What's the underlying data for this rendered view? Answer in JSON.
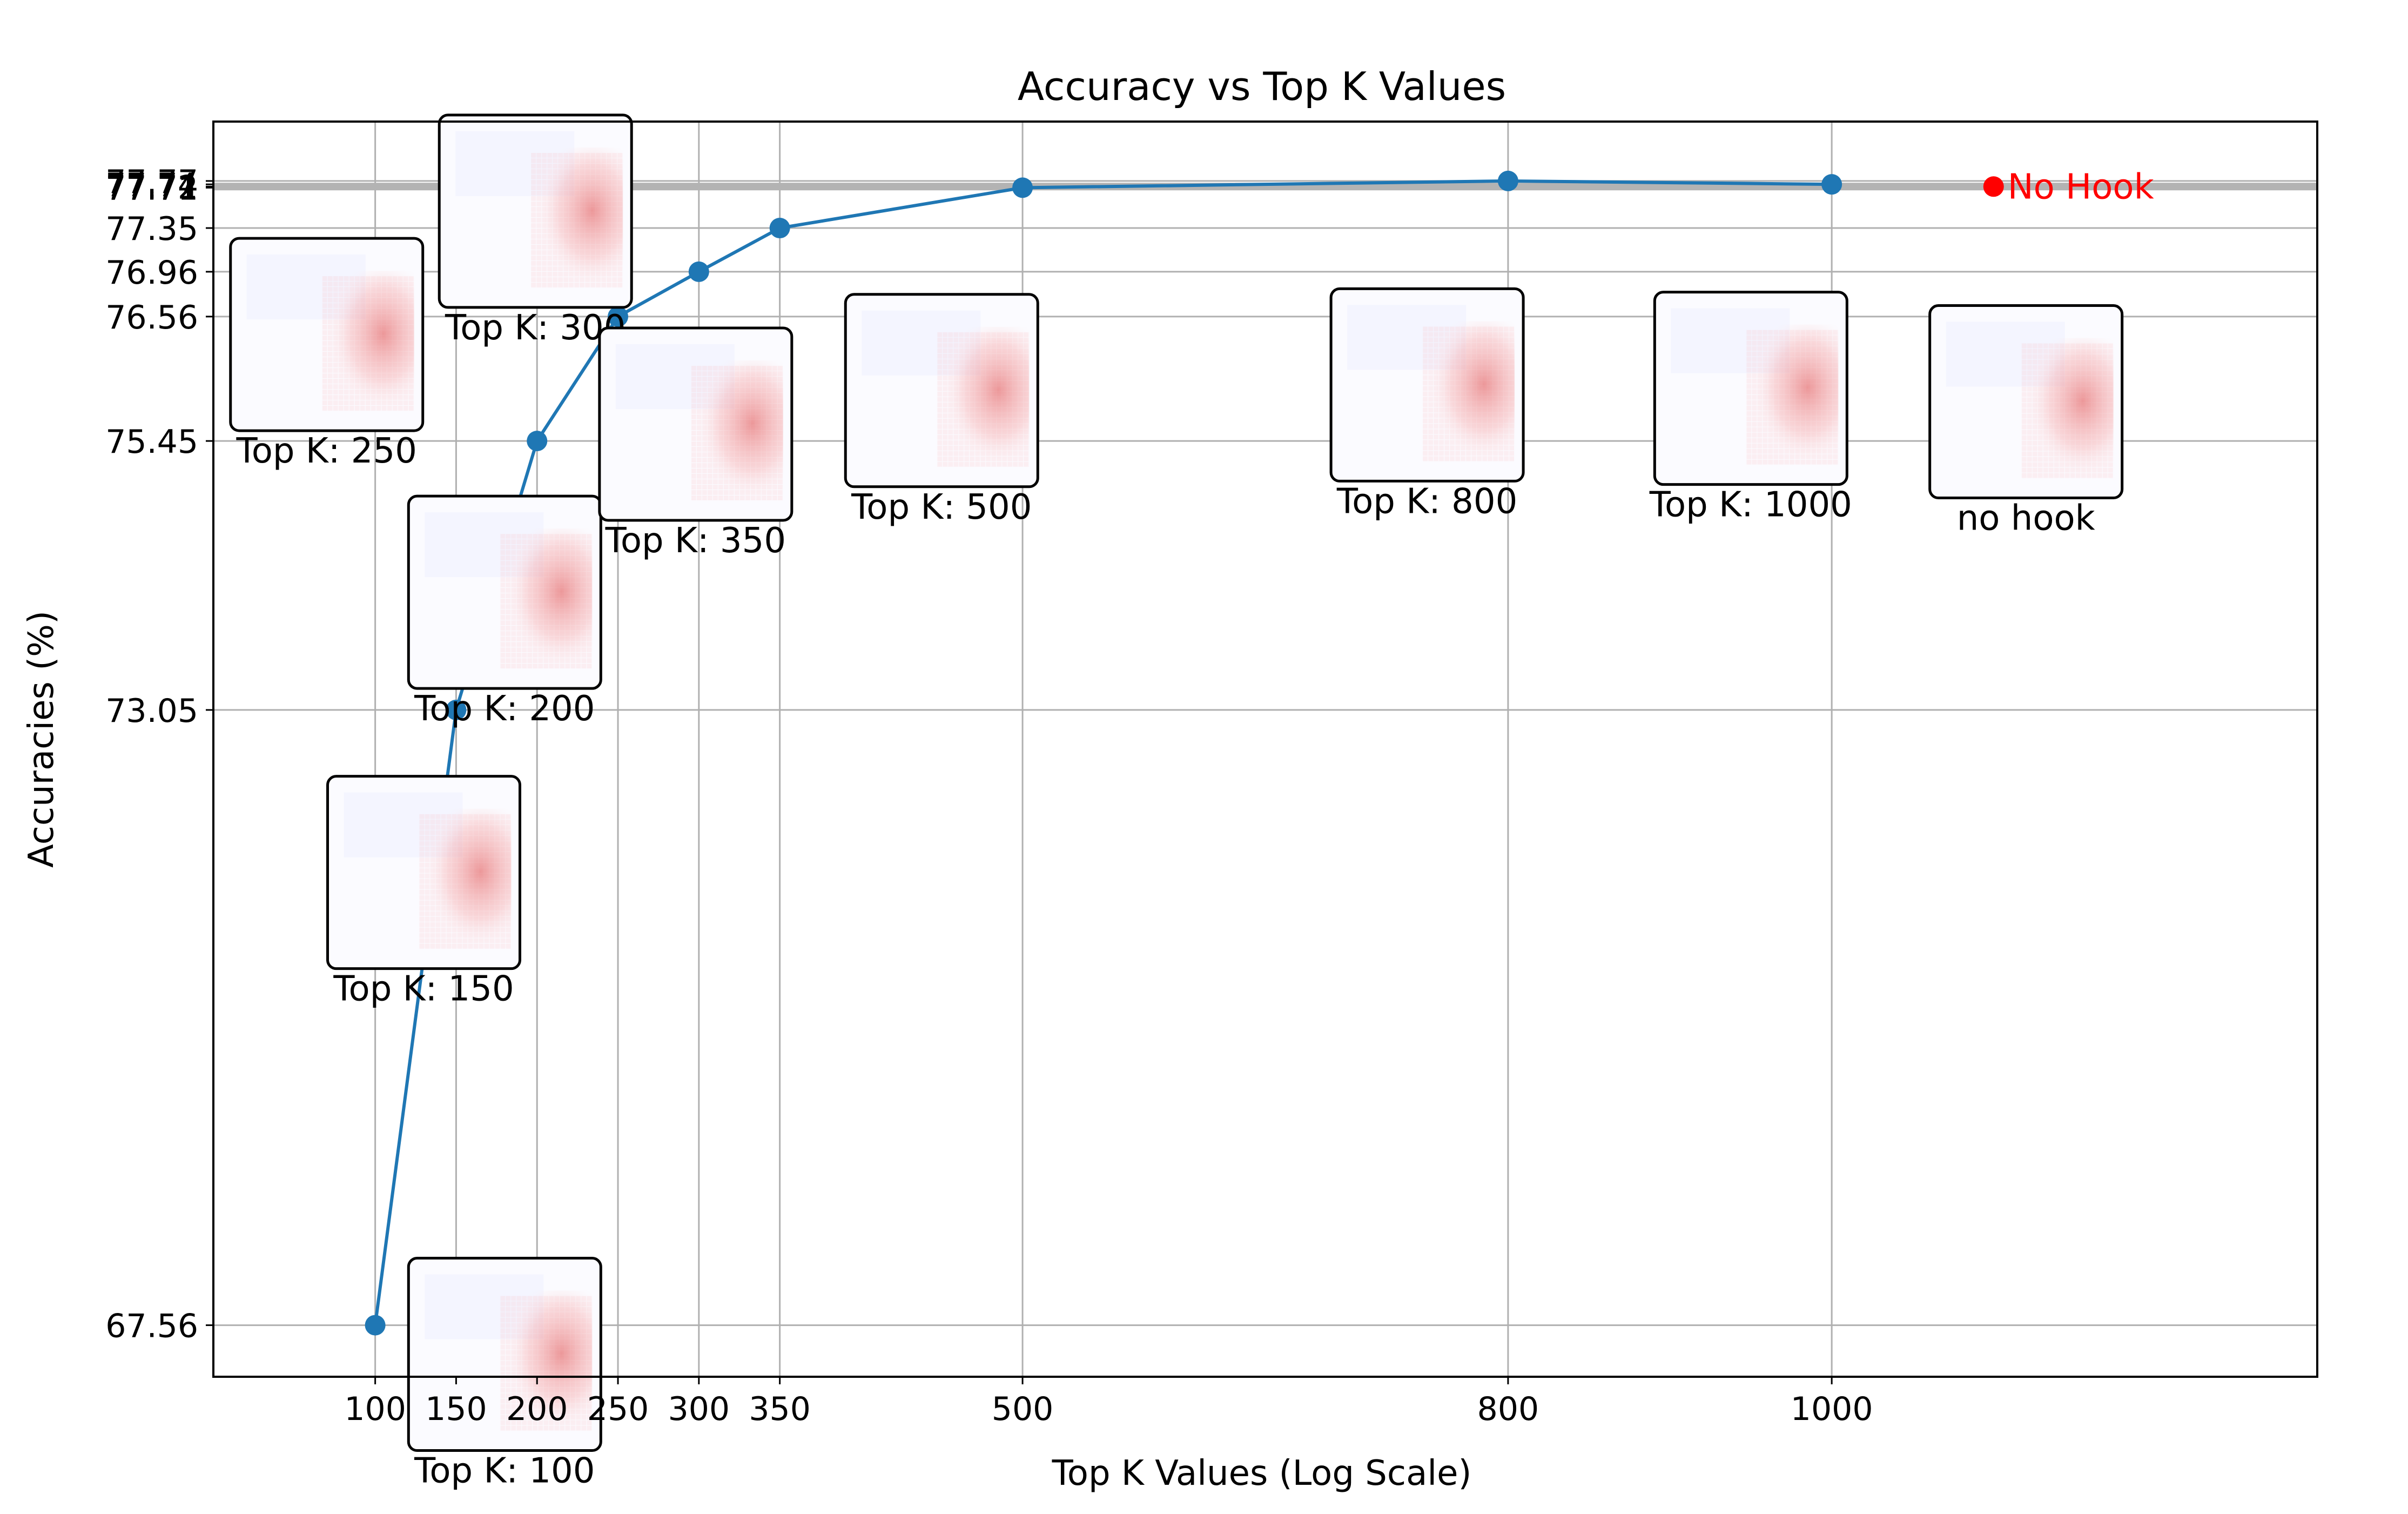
{
  "chart_data": {
    "type": "line",
    "title": "Accuracy vs Top K Values",
    "xlabel": "Top K Values (Log Scale)",
    "ylabel": "Accuracies (%)",
    "x_scale": "linear",
    "xlim": [
      0,
      1300
    ],
    "ylim": [
      67.1,
      78.3
    ],
    "grid": true,
    "x_ticks": [
      100,
      150,
      200,
      250,
      300,
      350,
      500,
      800,
      1000
    ],
    "x_tick_labels": [
      "100",
      "150",
      "200",
      "250",
      "300",
      "350",
      "500",
      "800",
      "1000"
    ],
    "y_ticks": [
      67.56,
      73.05,
      75.45,
      76.56,
      76.96,
      77.35,
      77.71,
      77.72,
      77.74,
      77.77
    ],
    "y_tick_labels": [
      "67.56",
      "73.05",
      "75.45",
      "76.56",
      "76.96",
      "77.35",
      "77.71",
      "77.72",
      "77.74",
      "77.77"
    ],
    "series": [
      {
        "color": "#1f77b4",
        "x": [
          100,
          150,
          200,
          250,
          300,
          350,
          500,
          800,
          1000
        ],
        "y": [
          67.56,
          73.05,
          75.45,
          76.56,
          76.96,
          77.35,
          77.71,
          77.77,
          77.74
        ]
      }
    ],
    "baseline": {
      "label": "No Hook",
      "value": 77.72,
      "x": 1100,
      "line_color": "#b3b3b3",
      "marker_color": "#ff0000"
    },
    "thumbnails": [
      {
        "label": "Top K: 100",
        "x": 180,
        "y": 67.3
      },
      {
        "label": "Top K: 150",
        "x": 130,
        "y": 71.6
      },
      {
        "label": "Top K: 200",
        "x": 180,
        "y": 74.1
      },
      {
        "label": "Top K: 250",
        "x": 70,
        "y": 76.4
      },
      {
        "label": "Top K: 300",
        "x": 199,
        "y": 77.5
      },
      {
        "label": "Top K: 350",
        "x": 298,
        "y": 75.6
      },
      {
        "label": "Top K: 500",
        "x": 450,
        "y": 75.9
      },
      {
        "label": "Top K: 800",
        "x": 750,
        "y": 75.95
      },
      {
        "label": "Top K: 1000",
        "x": 950,
        "y": 75.92
      },
      {
        "label": "no hook",
        "x": 1120,
        "y": 75.8
      }
    ]
  }
}
